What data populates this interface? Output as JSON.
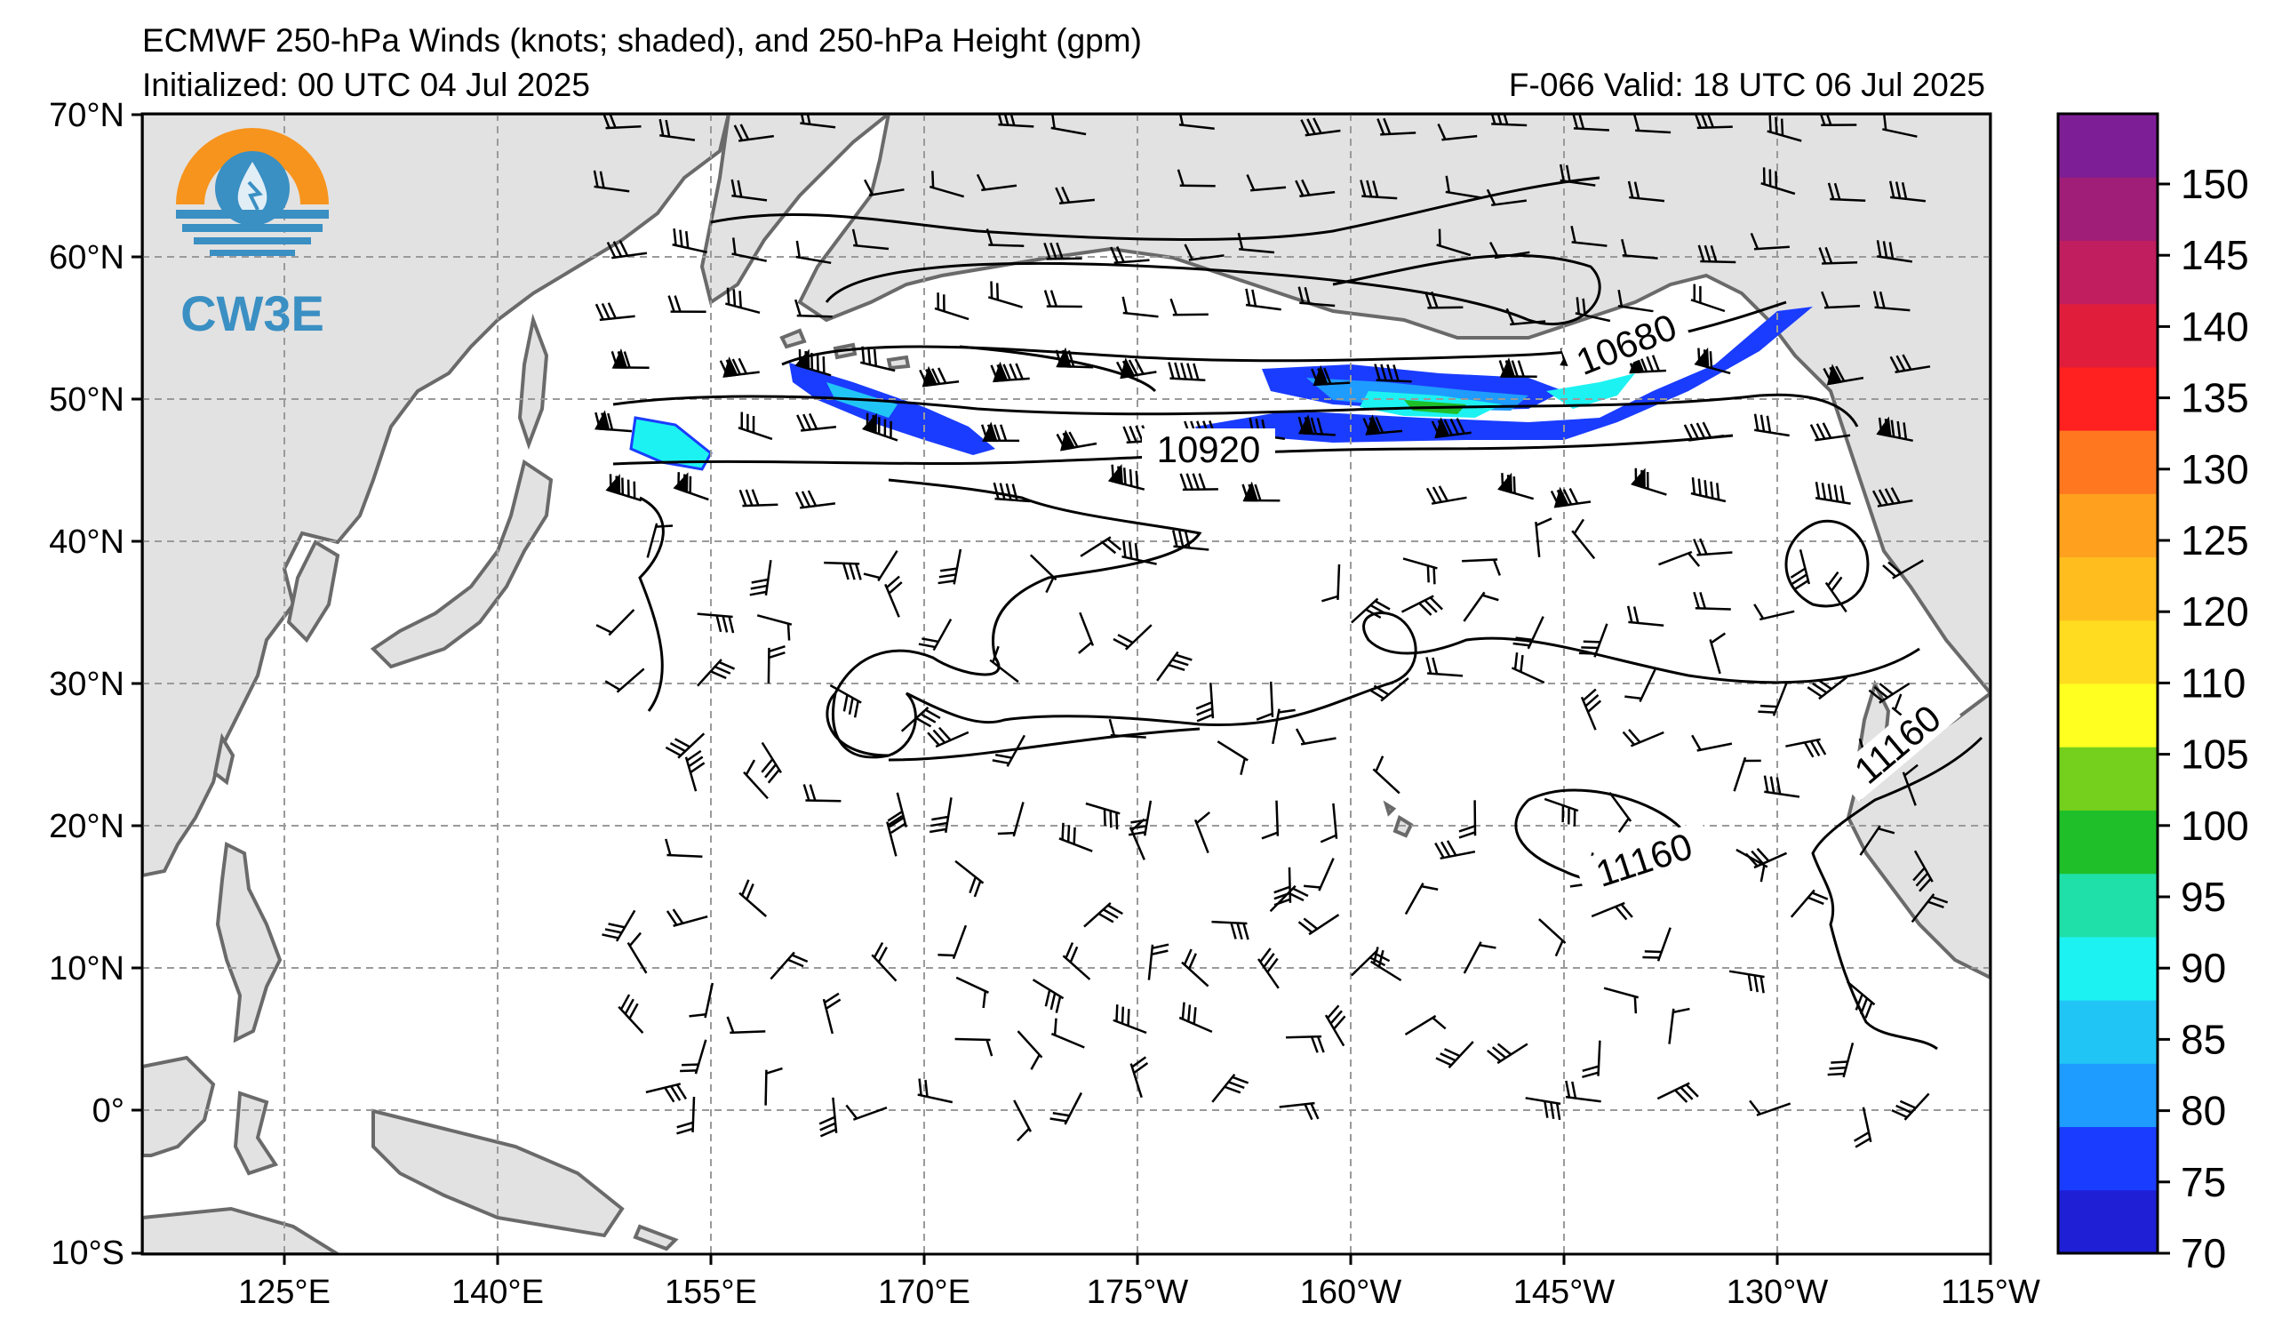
{
  "header": {
    "title": "ECMWF 250-hPa Winds (knots; shaded), and 250-hPa Height (gpm)",
    "initialized": "Initialized: 00 UTC 04 Jul 2025",
    "forecast": "F-066  Valid: 18 UTC 06 Jul 2025"
  },
  "logo": {
    "text": "CW3E",
    "colors": {
      "orange": "#f7941d",
      "blue": "#3a8fc3"
    }
  },
  "axes": {
    "lat_labels": [
      "70°N",
      "60°N",
      "50°N",
      "40°N",
      "30°N",
      "20°N",
      "10°N",
      "0°",
      "10°S"
    ],
    "lon_labels": [
      "125°E",
      "140°E",
      "155°E",
      "170°E",
      "175°W",
      "160°W",
      "145°W",
      "130°W",
      "115°W"
    ]
  },
  "contour_labels": [
    "10680",
    "10920",
    "11160",
    "11160"
  ],
  "colorbar": {
    "ticks": [
      "70",
      "75",
      "80",
      "85",
      "90",
      "95",
      "100",
      "105",
      "110",
      "120",
      "125",
      "130",
      "135",
      "140",
      "145",
      "150"
    ],
    "colors": [
      "#1f1fd6",
      "#1a3cff",
      "#1f9cff",
      "#21c5f5",
      "#1df2f2",
      "#1fe0a8",
      "#1fbf2a",
      "#74d01c",
      "#ffff20",
      "#ffdc20",
      "#ffbe1e",
      "#ffa01e",
      "#ff7820",
      "#ff2020",
      "#e01e3c",
      "#c01e5e",
      "#a01e78",
      "#7e1e96"
    ]
  },
  "colors": {
    "land": "#e2e2e2",
    "coast": "#6a6a6a",
    "grid": "#9a9a9a"
  }
}
